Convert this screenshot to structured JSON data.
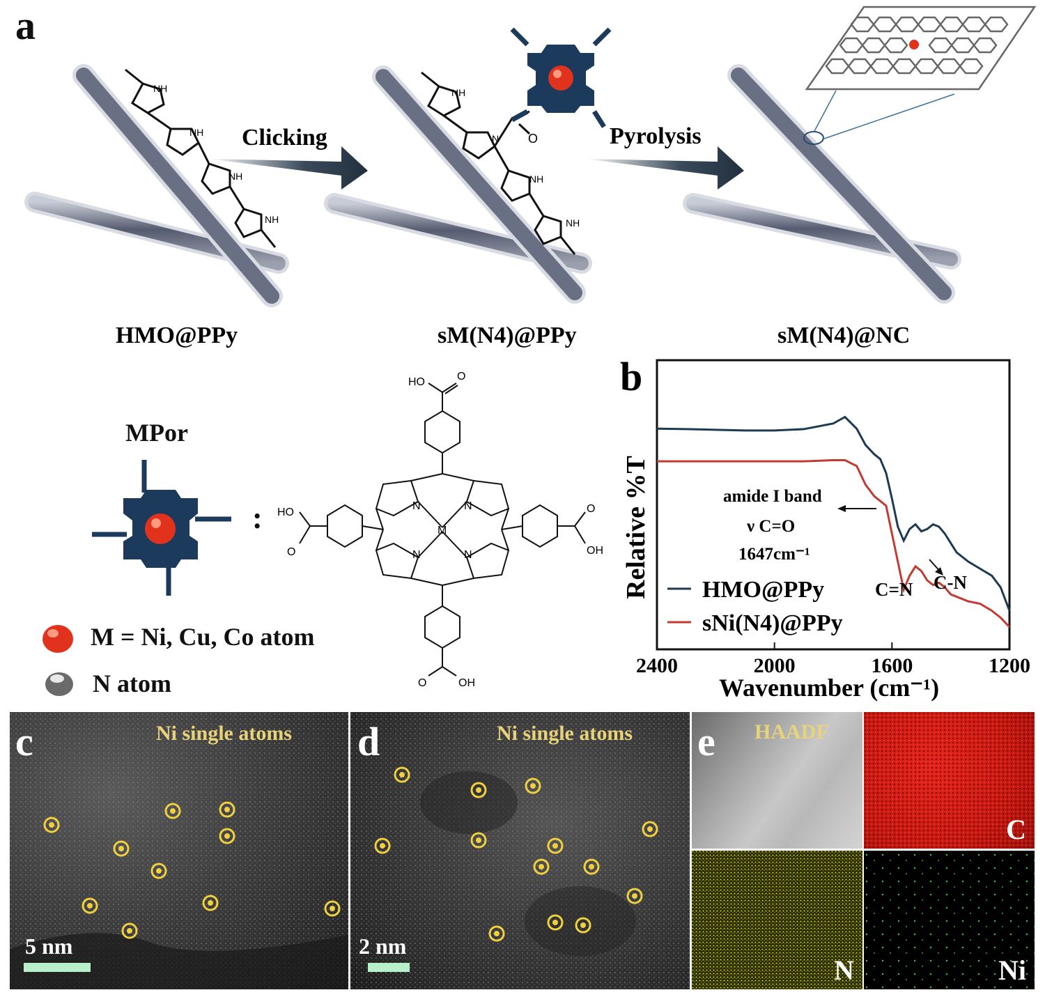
{
  "panel_labels": {
    "a": "a",
    "b": "b",
    "c": "c",
    "d": "d",
    "e": "e"
  },
  "scheme": {
    "step1": "HMO@PPy",
    "step2": "sM(N4)@PPy",
    "step3": "sM(N4)@NC",
    "arrow1": "Clicking",
    "arrow2": "Pyrolysis",
    "nh": "NH",
    "n": "N",
    "o": "O"
  },
  "mpor": {
    "title": "MPor",
    "m_legend": "M = Ni, Cu, Co atom",
    "n_legend": "N atom",
    "colon": ":",
    "atom_m": "M",
    "atom_n": "N",
    "ho": "HO",
    "oh": "OH",
    "o": "O",
    "colors": {
      "metal": "#e0321c",
      "porphyrin": "#1c3a5c"
    }
  },
  "ftir": {
    "chart_data": {
      "type": "line",
      "xlabel": "Wavenumber (cm⁻¹)",
      "ylabel": "Relative %T",
      "x_ticks": [
        "2400",
        "2000",
        "1600",
        "1200"
      ],
      "xlim": [
        2400,
        1200
      ],
      "series": [
        {
          "name": "HMO@PPy",
          "color": "#1c3a52",
          "x": [
            2400,
            2300,
            2200,
            2100,
            2000,
            1900,
            1800,
            1760,
            1720,
            1690,
            1660,
            1640,
            1620,
            1600,
            1580,
            1560,
            1540,
            1520,
            1500,
            1480,
            1460,
            1440,
            1420,
            1400,
            1380,
            1360,
            1340,
            1300,
            1260,
            1230,
            1200
          ],
          "y": [
            0.85,
            0.848,
            0.845,
            0.842,
            0.842,
            0.848,
            0.872,
            0.9,
            0.85,
            0.78,
            0.74,
            0.72,
            0.66,
            0.55,
            0.43,
            0.37,
            0.42,
            0.44,
            0.41,
            0.42,
            0.44,
            0.43,
            0.4,
            0.36,
            0.32,
            0.3,
            0.28,
            0.25,
            0.22,
            0.17,
            0.07
          ]
        },
        {
          "name": "sNi(N4)@PPy",
          "color": "#c23a32",
          "x": [
            2400,
            2300,
            2200,
            2100,
            2000,
            1900,
            1800,
            1760,
            1720,
            1690,
            1660,
            1640,
            1620,
            1600,
            1580,
            1560,
            1540,
            1520,
            1500,
            1480,
            1460,
            1440,
            1420,
            1400,
            1380,
            1360,
            1340,
            1300,
            1260,
            1230,
            1200
          ],
          "y": [
            0.71,
            0.71,
            0.71,
            0.71,
            0.71,
            0.71,
            0.715,
            0.715,
            0.69,
            0.61,
            0.56,
            0.54,
            0.52,
            0.4,
            0.28,
            0.16,
            0.22,
            0.26,
            0.24,
            0.2,
            0.18,
            0.19,
            0.17,
            0.14,
            0.13,
            0.12,
            0.11,
            0.1,
            0.07,
            0.04,
            0.0
          ]
        }
      ],
      "annotations": {
        "amide_line1": "amide I band",
        "amide_line2": "ν C=O",
        "amide_line3": "1647cm⁻¹",
        "cn_double": "C=N",
        "cn_single": "C-N"
      }
    }
  },
  "stem": {
    "c_label": "Ni single atoms",
    "d_label": "Ni single atoms",
    "c_scale": "5 nm",
    "d_scale": "2 nm",
    "atom_color": "#f0d040"
  },
  "eds": {
    "haadf": "HAADF",
    "c": "C",
    "n": "N",
    "ni": "Ni",
    "colors": {
      "c": "#e01a10",
      "n": "#d8e020",
      "ni": "#30d040"
    }
  }
}
